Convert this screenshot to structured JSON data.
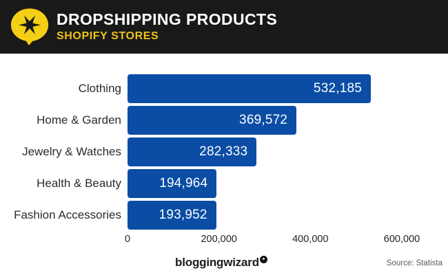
{
  "header": {
    "title": "DROPSHIPPING PRODUCTS",
    "subtitle": "SHOPIFY STORES",
    "logo_icon": "speech-bubble-with-star",
    "colors": {
      "background": "#191919",
      "title": "#ffffff",
      "accent_yellow": "#EFC31A",
      "logo_yellow": "#F4CF15"
    }
  },
  "chart_data": {
    "type": "bar",
    "orientation": "horizontal",
    "categories": [
      "Clothing",
      "Home & Garden",
      "Jewelry & Watches",
      "Health & Beauty",
      "Fashion Accessories"
    ],
    "values": [
      532185,
      369572,
      282333,
      194964,
      193952
    ],
    "value_labels": [
      "532,185",
      "369,572",
      "282,333",
      "194,964",
      "193,952"
    ],
    "title": "Dropshipping Products - Shopify Stores",
    "xlabel": "",
    "ylabel": "",
    "xlim": [
      0,
      600000
    ],
    "x_ticks": [
      "0",
      "200,000",
      "400,000",
      "600,000"
    ],
    "x_tick_values": [
      0,
      200000,
      400000,
      600000
    ],
    "bar_color": "#0B4DA5",
    "grid": false,
    "legend": false,
    "value_label_position": "inside-right"
  },
  "footer": {
    "brand": "bloggingwizard",
    "brand_badge_icon": "star-in-circle",
    "brand_badge_glyph": "✦",
    "source": "Source: Statista"
  }
}
